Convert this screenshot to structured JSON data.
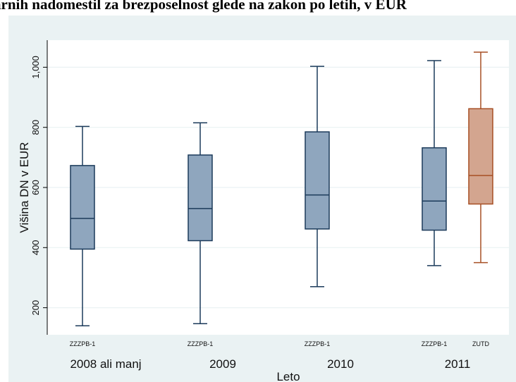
{
  "chart_data": {
    "type": "boxplot",
    "title": "enarnih nadomestil za brezposelnost glede na zakon po letih, v EUR",
    "xlabel": "Leto",
    "ylabel": "Višina DN v EUR",
    "ylim": [
      110,
      1090
    ],
    "yticks": [
      200,
      400,
      600,
      800,
      1000
    ],
    "ytick_labels": [
      "200",
      "400",
      "600",
      "800",
      "1,000"
    ],
    "grid": true,
    "categories": [
      "2008 ali manj",
      "2009",
      "2010",
      "2011"
    ],
    "boxes": [
      {
        "category": "2008 ali manj",
        "group": "ZZZPB-1",
        "min": 140,
        "q1": 395,
        "median": 497,
        "q3": 673,
        "max": 803
      },
      {
        "category": "2009",
        "group": "ZZZPB-1",
        "min": 147,
        "q1": 423,
        "median": 530,
        "q3": 708,
        "max": 815
      },
      {
        "category": "2010",
        "group": "ZZZPB-1",
        "min": 270,
        "q1": 462,
        "median": 575,
        "q3": 785,
        "max": 1003
      },
      {
        "category": "2011",
        "group": "ZZZPB-1",
        "min": 340,
        "q1": 458,
        "median": 555,
        "q3": 732,
        "max": 1022
      },
      {
        "category": "2011",
        "group": "ZUTD",
        "min": 350,
        "q1": 545,
        "median": 640,
        "q3": 862,
        "max": 1050
      }
    ],
    "colors": {
      "ZZZPB-1": {
        "fill": "#8fa6be",
        "stroke": "#1b3a5a"
      },
      "ZUTD": {
        "fill": "#d3a58f",
        "stroke": "#a74f24"
      }
    }
  }
}
